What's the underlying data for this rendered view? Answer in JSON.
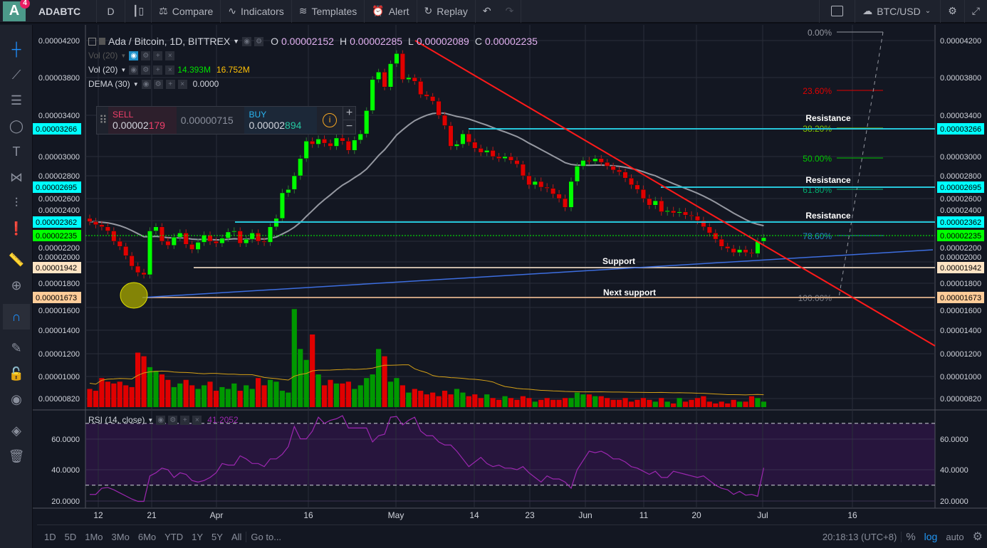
{
  "topbar": {
    "badge": "4",
    "logo": "A",
    "symbol": "ADABTC",
    "interval": "D",
    "compare": "Compare",
    "indicators": "Indicators",
    "templates": "Templates",
    "alert": "Alert",
    "replay": "Replay",
    "currency": "BTC/USD"
  },
  "legend": {
    "title": "Ada / Bitcoin, 1D, BITTREX",
    "o_label": "O",
    "o": "0.00002152",
    "h_label": "H",
    "h": "0.00002285",
    "l_label": "L",
    "l": "0.00002089",
    "c_label": "C",
    "c": "0.00002235",
    "vol_hidden": "Vol (20)",
    "vol": "Vol (20)",
    "vol_v1": "14.393M",
    "vol_v2": "16.752M",
    "dema": "DEMA (30)",
    "dema_v": "0.0000",
    "rsi": "RSI (14, close)",
    "rsi_v": "41.2052"
  },
  "trade": {
    "sell_label": "SELL",
    "sell_a": "0.00002",
    "sell_b": "179",
    "spread": "0.00000715",
    "buy_label": "BUY",
    "buy_a": "0.00002",
    "buy_b": "894",
    "plus": "+",
    "minus": "−"
  },
  "price_axis": [
    "0.00004200",
    "0.00003800",
    "0.00003400",
    "0.00003000",
    "0.00002800",
    "0.00002600",
    "0.00002400",
    "0.00002200",
    "0.00002000",
    "0.00001800",
    "0.00001600",
    "0.00001400",
    "0.00001200",
    "0.00001000",
    "0.00000820"
  ],
  "price_tags": [
    {
      "text": "0.00003266",
      "color": "#00ffff"
    },
    {
      "text": "0.00002695",
      "color": "#00ffff"
    },
    {
      "text": "0.00002362",
      "color": "#00ffff"
    },
    {
      "text": "0.00002235",
      "color": "#00ff00"
    },
    {
      "text": "0.00001942",
      "color": "#ffe4c4"
    },
    {
      "text": "0.00001673",
      "color": "#ffcc99"
    }
  ],
  "rsi_axis": [
    "60.0000",
    "40.0000",
    "20.0000"
  ],
  "time_axis": [
    "12",
    "21",
    "Apr",
    "16",
    "May",
    "14",
    "23",
    "Jun",
    "11",
    "20",
    "Jul",
    "16"
  ],
  "annotations": {
    "r1": "Resistance",
    "r2": "Resistance",
    "r3": "Resistance",
    "support": "Support",
    "next_support": "Next support"
  },
  "fib": [
    {
      "text": "0.00%",
      "color": "#9598a1"
    },
    {
      "text": "23.60%",
      "color": "#e00000"
    },
    {
      "text": "38.20%",
      "color": "#81c700"
    },
    {
      "text": "50.00%",
      "color": "#00c800"
    },
    {
      "text": "61.80%",
      "color": "#00b070"
    },
    {
      "text": "78.60%",
      "color": "#1e90c8"
    },
    {
      "text": "100.00%",
      "color": "#787b86"
    }
  ],
  "bottombar": {
    "ranges": [
      "1D",
      "5D",
      "1Mo",
      "3Mo",
      "6Mo",
      "YTD",
      "1Y",
      "5Y",
      "All"
    ],
    "goto": "Go to...",
    "time": "20:18:13 (UTC+8)",
    "pct": "%",
    "log": "log",
    "auto": "auto"
  },
  "colors": {
    "up": "#00ff00",
    "down": "#e00000",
    "vol_up": "#009900",
    "vol_down": "#e00000",
    "trend": "#ff1a1a",
    "rsi": "#9c27b0"
  },
  "chart_data": {
    "type": "candlestick",
    "start": "Mar 10",
    "unit": "1e-6 BTC",
    "close": [
      23.9,
      23.6,
      23.4,
      23.0,
      22.0,
      21.5,
      20.6,
      19.6,
      19.0,
      18.8,
      23.0,
      23.4,
      22.0,
      21.6,
      22.4,
      22.8,
      21.7,
      21.2,
      21.9,
      22.6,
      22.0,
      21.8,
      22.3,
      22.9,
      23.0,
      21.8,
      22.2,
      22.8,
      22.0,
      21.9,
      23.4,
      24.2,
      26.5,
      26.8,
      28.0,
      29.8,
      31.5,
      31.2,
      31.7,
      31.3,
      31.0,
      31.8,
      31.5,
      30.6,
      31.6,
      32.2,
      34.5,
      37.8,
      38.6,
      37.0,
      39.5,
      40.6,
      37.8,
      38.0,
      37.6,
      36.2,
      36.0,
      35.5,
      34.0,
      33.0,
      31.0,
      31.2,
      32.2,
      31.4,
      30.8,
      30.4,
      30.6,
      30.0,
      29.8,
      30.0,
      29.6,
      29.2,
      28.0,
      27.2,
      27.5,
      27.0,
      26.9,
      26.4,
      26.0,
      25.2,
      27.5,
      29.0,
      29.6,
      29.5,
      29.8,
      29.4,
      29.0,
      28.6,
      28.4,
      27.8,
      27.2,
      26.8,
      26.0,
      25.4,
      25.8,
      24.8,
      24.9,
      24.7,
      24.8,
      24.5,
      24.4,
      24.0,
      23.4,
      22.8,
      22.2,
      21.5,
      21.3,
      20.9,
      21.2,
      20.9,
      20.8,
      22.0,
      22.35
    ],
    "volume": [
      10,
      9,
      16,
      14,
      13,
      14,
      12,
      11,
      30,
      28,
      22,
      20,
      18,
      15,
      11,
      13,
      15,
      12,
      10,
      12,
      14,
      9,
      11,
      10,
      13,
      9,
      12,
      10,
      16,
      12,
      15,
      14,
      9,
      8,
      54,
      32,
      26,
      40,
      18,
      12,
      15,
      13,
      13,
      14,
      10,
      12,
      16,
      18,
      32,
      28,
      14,
      16,
      12,
      8,
      10,
      9,
      7,
      8,
      6,
      9,
      7,
      10,
      8,
      6,
      7,
      5,
      7,
      5,
      4,
      6,
      5,
      4,
      6,
      5,
      3,
      4,
      5,
      4,
      4,
      5,
      5,
      8,
      7,
      7,
      6,
      6,
      5,
      4,
      4,
      5,
      3,
      4,
      5,
      4,
      3,
      5,
      3,
      2,
      5,
      3,
      4,
      5,
      6,
      3,
      2,
      3,
      2,
      4,
      3,
      3,
      6,
      5,
      3
    ],
    "rsi": [
      24,
      24,
      28,
      28.5,
      27,
      25,
      23,
      21,
      19.5,
      19.5,
      36,
      38,
      41,
      40,
      35,
      38,
      37,
      33,
      32,
      33,
      35,
      38,
      44,
      43,
      43,
      49,
      47,
      44,
      44,
      42,
      47,
      47,
      50,
      55,
      68,
      60,
      60,
      65,
      74,
      70,
      72,
      73,
      75,
      67,
      67,
      67,
      67,
      58,
      62,
      63,
      74,
      74.5,
      69,
      72,
      74,
      65,
      62,
      62,
      58,
      56,
      56,
      52,
      47,
      42,
      45,
      48,
      44,
      42,
      43,
      41,
      41,
      40,
      42,
      38,
      35,
      32,
      36,
      34,
      34,
      32,
      28,
      40,
      46,
      52,
      51,
      52,
      50,
      47,
      47,
      45,
      42,
      41,
      39,
      37,
      39,
      35,
      35,
      39,
      38,
      37,
      36,
      35,
      36,
      33,
      30,
      28,
      27,
      24,
      26,
      23.5,
      24,
      22.8,
      41.2
    ],
    "rsi_bands": [
      30,
      70
    ]
  }
}
